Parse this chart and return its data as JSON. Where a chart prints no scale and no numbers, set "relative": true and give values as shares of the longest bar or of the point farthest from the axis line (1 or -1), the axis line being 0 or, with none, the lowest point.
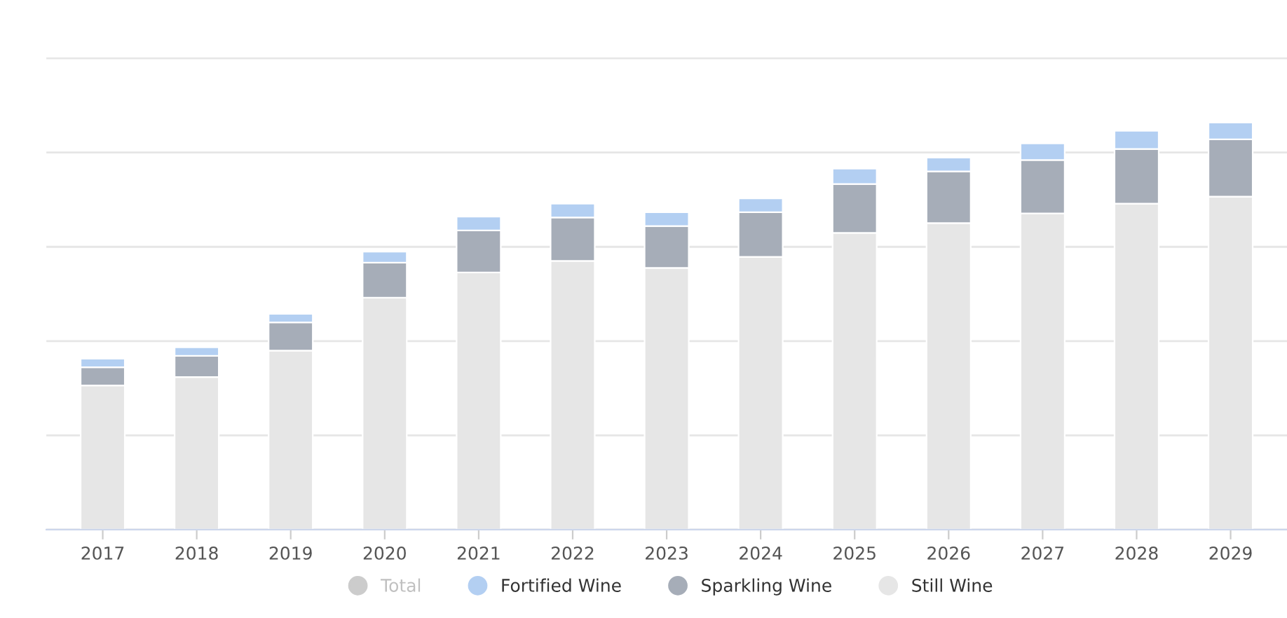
{
  "chart_data": {
    "type": "bar",
    "stacked": true,
    "relative": true,
    "grid": "y",
    "legend": "bottom",
    "categories": [
      "2017",
      "2018",
      "2019",
      "2020",
      "2021",
      "2022",
      "2023",
      "2024",
      "2025",
      "2026",
      "2027",
      "2028",
      "2029"
    ],
    "series": [
      {
        "name": "Still Wine",
        "color": "#e6e6e6",
        "values": [
          0.354,
          0.375,
          0.44,
          0.57,
          0.632,
          0.66,
          0.643,
          0.67,
          0.729,
          0.753,
          0.777,
          0.801,
          0.818
        ]
      },
      {
        "name": "Sparkling Wine",
        "color": "#a6adb8",
        "values": [
          0.045,
          0.052,
          0.069,
          0.086,
          0.103,
          0.107,
          0.103,
          0.11,
          0.12,
          0.127,
          0.131,
          0.134,
          0.141
        ]
      },
      {
        "name": "Fortified Wine",
        "color": "#b3cff2",
        "values": [
          0.021,
          0.021,
          0.021,
          0.027,
          0.034,
          0.034,
          0.034,
          0.034,
          0.038,
          0.034,
          0.041,
          0.045,
          0.041
        ]
      },
      {
        "name": "Total",
        "color": "#cccccc",
        "values": [
          null,
          null,
          null,
          null,
          null,
          null,
          null,
          null,
          null,
          null,
          null,
          null,
          null
        ]
      }
    ]
  }
}
